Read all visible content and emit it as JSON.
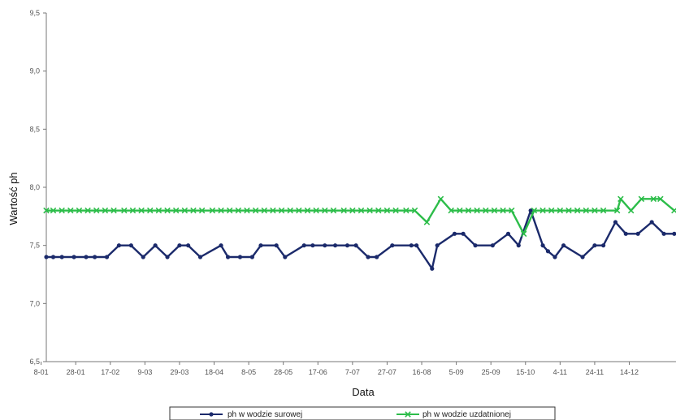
{
  "chart_data": {
    "type": "line",
    "title": "",
    "xlabel": "Data",
    "ylabel": "Wartość ph",
    "ylim": [
      6.5,
      9.5
    ],
    "y_ticks": [
      "6,5",
      "7,0",
      "7,5",
      "8,0",
      "8,5",
      "9,0",
      "9,5"
    ],
    "categories": [
      "8-01",
      "28-01",
      "17-02",
      "9-03",
      "29-03",
      "18-04",
      "8-05",
      "28-05",
      "17-06",
      "7-07",
      "27-07",
      "16-08",
      "5-09",
      "25-09",
      "15-10",
      "4-11",
      "24-11",
      "14-12"
    ],
    "x_start": "2014-01-01",
    "x_end": "2014-12-31",
    "grid": false,
    "legend_position": "bottom",
    "series": [
      {
        "name": "ph w wodzie surowej",
        "color": "#1b2a6b",
        "marker": "circle",
        "points": [
          [
            "2014-01-01",
            7.4
          ],
          [
            "2014-01-05",
            7.4
          ],
          [
            "2014-01-10",
            7.4
          ],
          [
            "2014-01-17",
            7.4
          ],
          [
            "2014-01-24",
            7.4
          ],
          [
            "2014-01-29",
            7.4
          ],
          [
            "2014-02-05",
            7.4
          ],
          [
            "2014-02-12",
            7.5
          ],
          [
            "2014-02-19",
            7.5
          ],
          [
            "2014-02-26",
            7.4
          ],
          [
            "2014-03-05",
            7.5
          ],
          [
            "2014-03-12",
            7.4
          ],
          [
            "2014-03-19",
            7.5
          ],
          [
            "2014-03-24",
            7.5
          ],
          [
            "2014-03-31",
            7.4
          ],
          [
            "2014-04-12",
            7.5
          ],
          [
            "2014-04-16",
            7.4
          ],
          [
            "2014-04-23",
            7.4
          ],
          [
            "2014-04-30",
            7.4
          ],
          [
            "2014-05-05",
            7.5
          ],
          [
            "2014-05-14",
            7.5
          ],
          [
            "2014-05-19",
            7.4
          ],
          [
            "2014-05-30",
            7.5
          ],
          [
            "2014-06-04",
            7.5
          ],
          [
            "2014-06-11",
            7.5
          ],
          [
            "2014-06-17",
            7.5
          ],
          [
            "2014-06-24",
            7.5
          ],
          [
            "2014-06-29",
            7.5
          ],
          [
            "2014-07-06",
            7.4
          ],
          [
            "2014-07-11",
            7.4
          ],
          [
            "2014-07-20",
            7.5
          ],
          [
            "2014-07-31",
            7.5
          ],
          [
            "2014-08-03",
            7.5
          ],
          [
            "2014-08-12",
            7.3
          ],
          [
            "2014-08-15",
            7.5
          ],
          [
            "2014-08-25",
            7.6
          ],
          [
            "2014-08-30",
            7.6
          ],
          [
            "2014-09-06",
            7.5
          ],
          [
            "2014-09-16",
            7.5
          ],
          [
            "2014-09-25",
            7.6
          ],
          [
            "2014-10-01",
            7.5
          ],
          [
            "2014-10-08",
            7.8
          ],
          [
            "2014-10-15",
            7.5
          ],
          [
            "2014-10-18",
            7.45
          ],
          [
            "2014-10-22",
            7.4
          ],
          [
            "2014-10-27",
            7.5
          ],
          [
            "2014-11-07",
            7.4
          ],
          [
            "2014-11-14",
            7.5
          ],
          [
            "2014-11-19",
            7.5
          ],
          [
            "2014-11-26",
            7.7
          ],
          [
            "2014-12-02",
            7.6
          ],
          [
            "2014-12-09",
            7.6
          ],
          [
            "2014-12-17",
            7.7
          ],
          [
            "2014-12-24",
            7.6
          ],
          [
            "2014-12-30",
            7.6
          ]
        ]
      },
      {
        "name": "ph w wodzie uzdatnionej",
        "color": "#2dbd4a",
        "marker": "x",
        "points": [
          [
            "2014-01-01",
            7.8
          ],
          [
            "2014-01-05",
            7.8
          ],
          [
            "2014-01-10",
            7.8
          ],
          [
            "2014-01-15",
            7.8
          ],
          [
            "2014-01-20",
            7.8
          ],
          [
            "2014-01-25",
            7.8
          ],
          [
            "2014-01-30",
            7.8
          ],
          [
            "2014-02-04",
            7.8
          ],
          [
            "2014-02-09",
            7.8
          ],
          [
            "2014-02-15",
            7.8
          ],
          [
            "2014-02-20",
            7.8
          ],
          [
            "2014-02-25",
            7.8
          ],
          [
            "2014-03-02",
            7.8
          ],
          [
            "2014-03-07",
            7.8
          ],
          [
            "2014-03-12",
            7.8
          ],
          [
            "2014-03-17",
            7.8
          ],
          [
            "2014-03-22",
            7.8
          ],
          [
            "2014-03-27",
            7.8
          ],
          [
            "2014-04-01",
            7.8
          ],
          [
            "2014-04-07",
            7.8
          ],
          [
            "2014-04-12",
            7.8
          ],
          [
            "2014-04-17",
            7.8
          ],
          [
            "2014-04-22",
            7.8
          ],
          [
            "2014-04-27",
            7.8
          ],
          [
            "2014-05-02",
            7.8
          ],
          [
            "2014-05-07",
            7.8
          ],
          [
            "2014-05-12",
            7.8
          ],
          [
            "2014-05-17",
            7.8
          ],
          [
            "2014-05-22",
            7.8
          ],
          [
            "2014-05-27",
            7.8
          ],
          [
            "2014-06-01",
            7.8
          ],
          [
            "2014-06-06",
            7.8
          ],
          [
            "2014-06-11",
            7.8
          ],
          [
            "2014-06-16",
            7.8
          ],
          [
            "2014-06-22",
            7.8
          ],
          [
            "2014-06-27",
            7.8
          ],
          [
            "2014-07-02",
            7.8
          ],
          [
            "2014-07-07",
            7.8
          ],
          [
            "2014-07-12",
            7.8
          ],
          [
            "2014-07-17",
            7.8
          ],
          [
            "2014-07-22",
            7.8
          ],
          [
            "2014-07-28",
            7.8
          ],
          [
            "2014-08-02",
            7.8
          ],
          [
            "2014-08-09",
            7.7
          ],
          [
            "2014-08-17",
            7.9
          ],
          [
            "2014-08-23",
            7.8
          ],
          [
            "2014-08-28",
            7.8
          ],
          [
            "2014-09-02",
            7.8
          ],
          [
            "2014-09-07",
            7.8
          ],
          [
            "2014-09-12",
            7.8
          ],
          [
            "2014-09-17",
            7.8
          ],
          [
            "2014-09-22",
            7.8
          ],
          [
            "2014-09-27",
            7.8
          ],
          [
            "2014-10-04",
            7.6
          ],
          [
            "2014-10-10",
            7.8
          ],
          [
            "2014-10-15",
            7.8
          ],
          [
            "2014-10-20",
            7.8
          ],
          [
            "2014-10-25",
            7.8
          ],
          [
            "2014-10-30",
            7.8
          ],
          [
            "2014-11-04",
            7.8
          ],
          [
            "2014-11-09",
            7.8
          ],
          [
            "2014-11-14",
            7.8
          ],
          [
            "2014-11-19",
            7.8
          ],
          [
            "2014-11-27",
            7.8
          ],
          [
            "2014-11-29",
            7.9
          ],
          [
            "2014-12-05",
            7.8
          ],
          [
            "2014-12-11",
            7.9
          ],
          [
            "2014-12-18",
            7.9
          ],
          [
            "2014-12-22",
            7.9
          ],
          [
            "2014-12-30",
            7.8
          ]
        ]
      }
    ]
  }
}
